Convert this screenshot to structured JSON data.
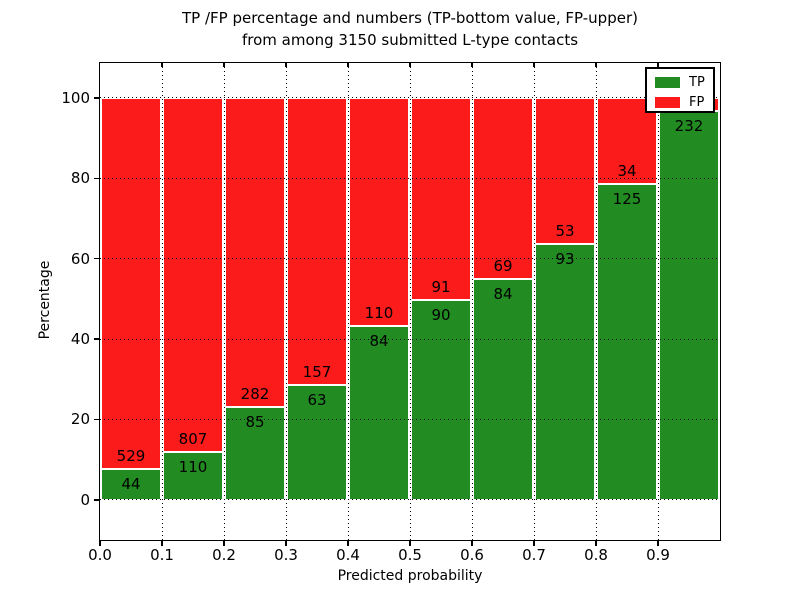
{
  "title": {
    "line1": "TP /FP percentage and numbers (TP-bottom value, FP-upper)",
    "line2": "from among 3150 submitted L-type contacts"
  },
  "axes": {
    "x_label": "Predicted probability",
    "y_label": "Percentage",
    "x_tick_labels": [
      "0.0",
      "0.1",
      "0.2",
      "0.3",
      "0.4",
      "0.5",
      "0.6",
      "0.7",
      "0.8",
      "0.9"
    ],
    "y_tick_labels": [
      "0",
      "20",
      "40",
      "60",
      "80",
      "100"
    ],
    "y_tick_values": [
      0,
      20,
      40,
      60,
      80,
      100
    ]
  },
  "legend": [
    {
      "label": "TP",
      "color": "#228b22"
    },
    {
      "label": "FP",
      "color": "#fb1b1b"
    }
  ],
  "colors": {
    "tp": "#228b22",
    "fp": "#fb1b1b",
    "grid": "#000000",
    "bar_edge": "#ffffff",
    "axis": "#000000"
  },
  "chart_data": {
    "type": "bar",
    "stacked": true,
    "title": "TP /FP percentage and numbers (TP-bottom value, FP-upper) from among 3150 submitted L-type contacts",
    "xlabel": "Predicted probability",
    "ylabel": "Percentage",
    "x_range": [
      0.0,
      1.0
    ],
    "ylim": [
      -10,
      108.7
    ],
    "grid": "dotted",
    "legend_position": "upper right",
    "bins": [
      "0.0-0.1",
      "0.1-0.2",
      "0.2-0.3",
      "0.3-0.4",
      "0.4-0.5",
      "0.5-0.6",
      "0.6-0.7",
      "0.7-0.8",
      "0.8-0.9",
      "0.9-1.0"
    ],
    "series": [
      {
        "name": "TP",
        "pct": [
          7.7,
          12.0,
          23.2,
          28.6,
          43.3,
          49.7,
          54.9,
          63.7,
          78.6,
          96.7
        ],
        "counts": [
          44,
          110,
          85,
          63,
          84,
          90,
          84,
          93,
          125,
          232
        ]
      },
      {
        "name": "FP",
        "pct": [
          92.3,
          88.0,
          76.8,
          71.4,
          56.7,
          50.3,
          45.1,
          36.3,
          21.4,
          3.3
        ],
        "counts": [
          529,
          807,
          282,
          157,
          110,
          91,
          69,
          53,
          34,
          null
        ]
      }
    ]
  }
}
